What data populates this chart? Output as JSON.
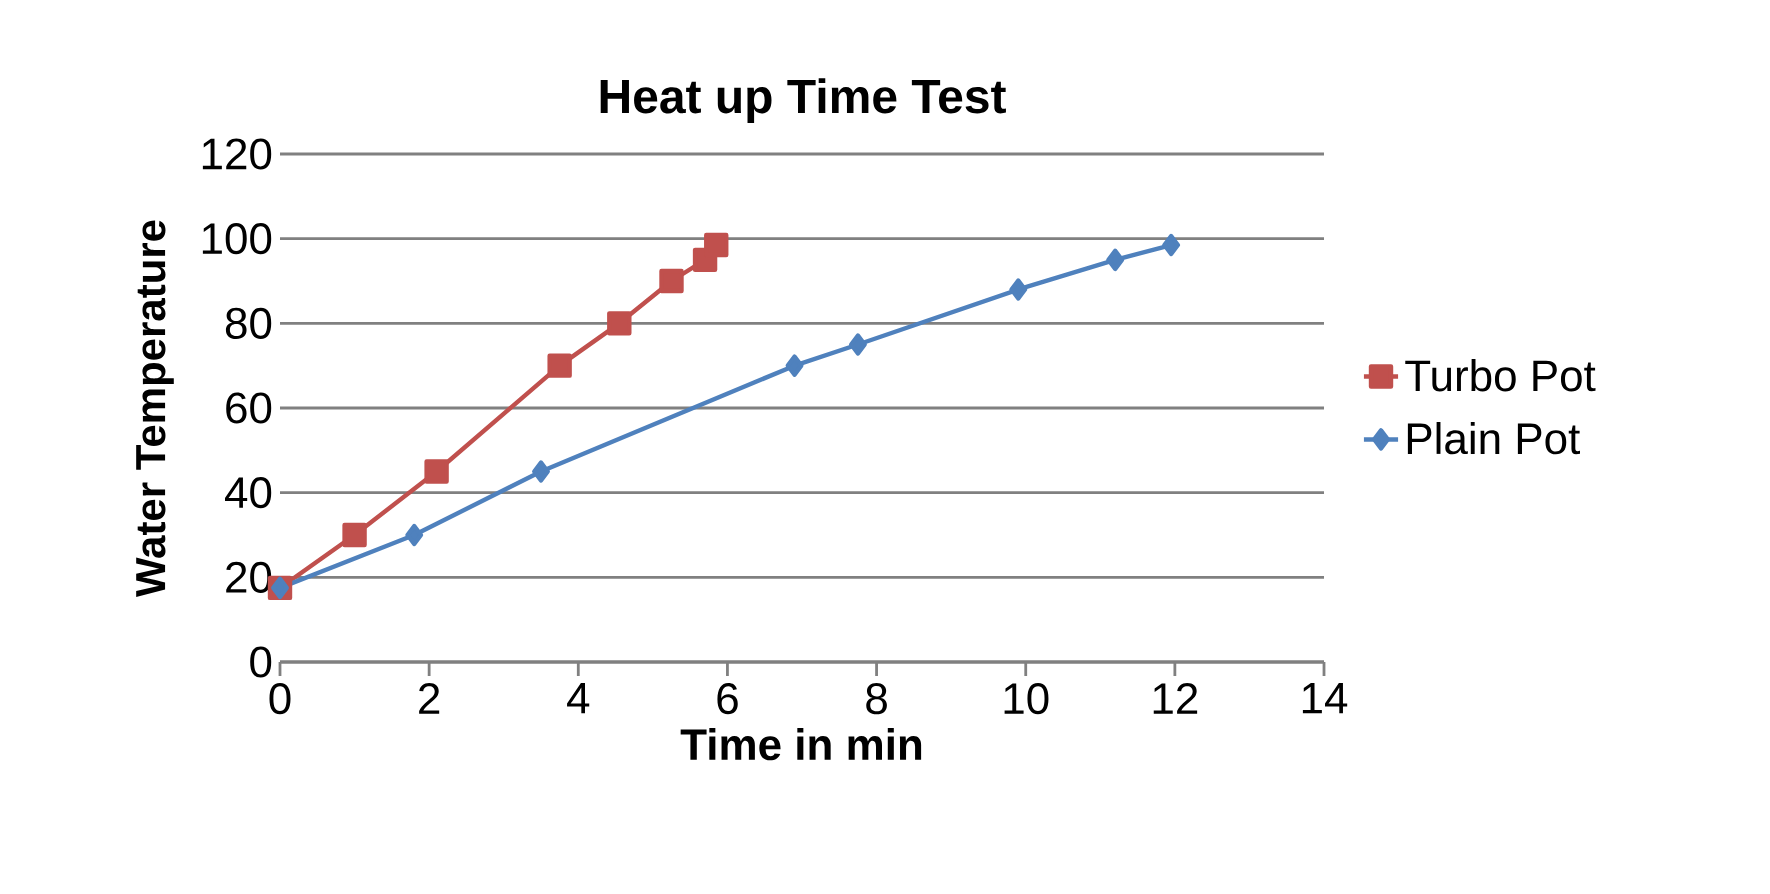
{
  "chart_data": {
    "type": "line",
    "title": "Heat up Time Test",
    "xlabel": "Time in min",
    "ylabel": "Water Temperature",
    "xlim": [
      0,
      14
    ],
    "xticks": [
      0,
      2,
      4,
      6,
      8,
      10,
      12,
      14
    ],
    "ylim": [
      0,
      120
    ],
    "yticks": [
      0,
      20,
      40,
      60,
      80,
      100,
      120
    ],
    "grid": "y",
    "legend": "right",
    "series": [
      {
        "name": "Turbo Pot",
        "color": "#c0504d",
        "marker": "square",
        "x": [
          0,
          1.0,
          2.1,
          3.75,
          4.55,
          5.25,
          5.7,
          5.85
        ],
        "values": [
          17.5,
          30,
          45,
          70,
          80,
          90,
          95,
          98.5
        ]
      },
      {
        "name": "Plain Pot",
        "color": "#4f81bd",
        "marker": "diamond",
        "x": [
          0,
          1.8,
          3.5,
          6.9,
          7.75,
          9.9,
          11.2,
          11.95
        ],
        "values": [
          17.5,
          30,
          45,
          70,
          75,
          88,
          95,
          98.5
        ]
      }
    ]
  }
}
